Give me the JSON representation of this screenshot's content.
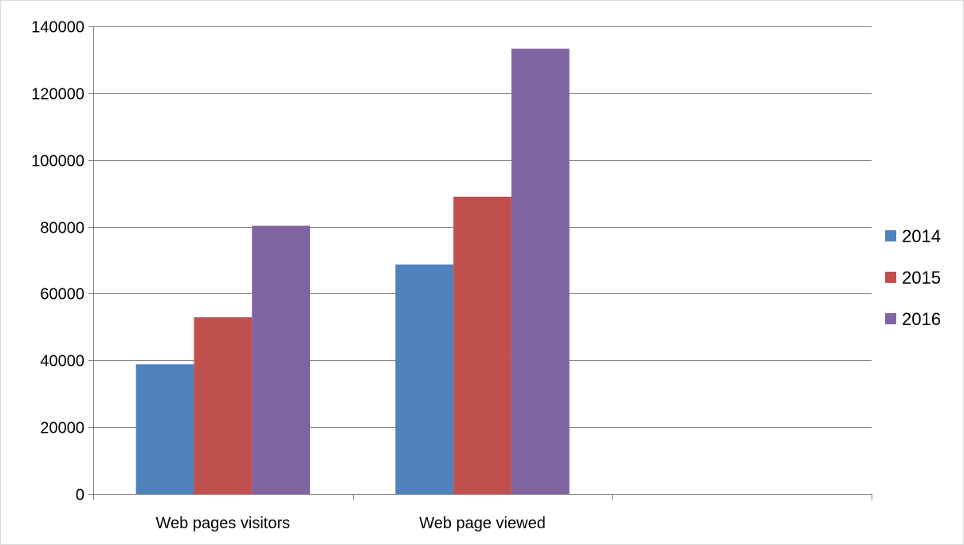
{
  "chart_data": {
    "type": "bar",
    "categories": [
      "Web pages visitors",
      "Web page viewed"
    ],
    "series": [
      {
        "name": "2014",
        "color": "#4F81BD",
        "values": [
          38800,
          68700
        ]
      },
      {
        "name": "2015",
        "color": "#C0504D",
        "values": [
          52900,
          89000
        ]
      },
      {
        "name": "2016",
        "color": "#8064A2",
        "values": [
          80300,
          133300
        ]
      }
    ],
    "ylim": [
      0,
      140000
    ],
    "yticks": [
      "0",
      "20000",
      "40000",
      "60000",
      "80000",
      "100000",
      "120000",
      "140000"
    ],
    "category_slots": 3,
    "grid": true,
    "legend": "right",
    "colors": {
      "gridline": "#868686",
      "axis": "#868686",
      "frame": "#d9d9d9"
    }
  }
}
